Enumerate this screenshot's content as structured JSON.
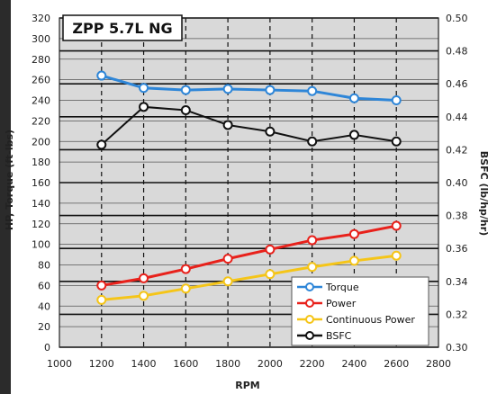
{
  "chart_data": {
    "type": "line",
    "title": "ZPP 5.7L NG",
    "xlabel": "RPM",
    "ylabel_left": "HP, Torque (ft-lbs)",
    "ylabel_right": "BSFC (lb/hp/hr)",
    "xlim": [
      1000,
      2800
    ],
    "ylim_left": [
      0,
      320
    ],
    "ylim_right": [
      0.3,
      0.5
    ],
    "x_ticks": [
      "1000",
      "1200",
      "1400",
      "1600",
      "1800",
      "2000",
      "2200",
      "2400",
      "2600",
      "2800"
    ],
    "y_left_ticks": [
      "0",
      "20",
      "40",
      "60",
      "80",
      "100",
      "120",
      "140",
      "160",
      "180",
      "200",
      "220",
      "240",
      "260",
      "280",
      "300",
      "320"
    ],
    "y_right_ticks": [
      "0.30",
      "0.32",
      "0.34",
      "0.36",
      "0.38",
      "0.40",
      "0.42",
      "0.44",
      "0.46",
      "0.48",
      "0.50"
    ],
    "grid": true,
    "legend_position": "bottom-right",
    "x": [
      1200,
      1400,
      1600,
      1800,
      2000,
      2200,
      2400,
      2600
    ],
    "series": [
      {
        "name": "Torque",
        "axis": "left",
        "color": "#2e86d8",
        "values": [
          264,
          252,
          250,
          251,
          250,
          249,
          242,
          240
        ]
      },
      {
        "name": "Power",
        "axis": "left",
        "color": "#e8211b",
        "values": [
          60,
          67,
          76,
          86,
          95,
          104,
          110,
          118
        ]
      },
      {
        "name": "Continuous Power",
        "axis": "left",
        "color": "#f5c518",
        "values": [
          46,
          50,
          57,
          64,
          71,
          78,
          84,
          89
        ]
      },
      {
        "name": "BSFC",
        "axis": "right",
        "color": "#111111",
        "values": [
          0.423,
          0.446,
          0.444,
          0.435,
          0.431,
          0.425,
          0.429,
          0.425
        ]
      }
    ]
  }
}
